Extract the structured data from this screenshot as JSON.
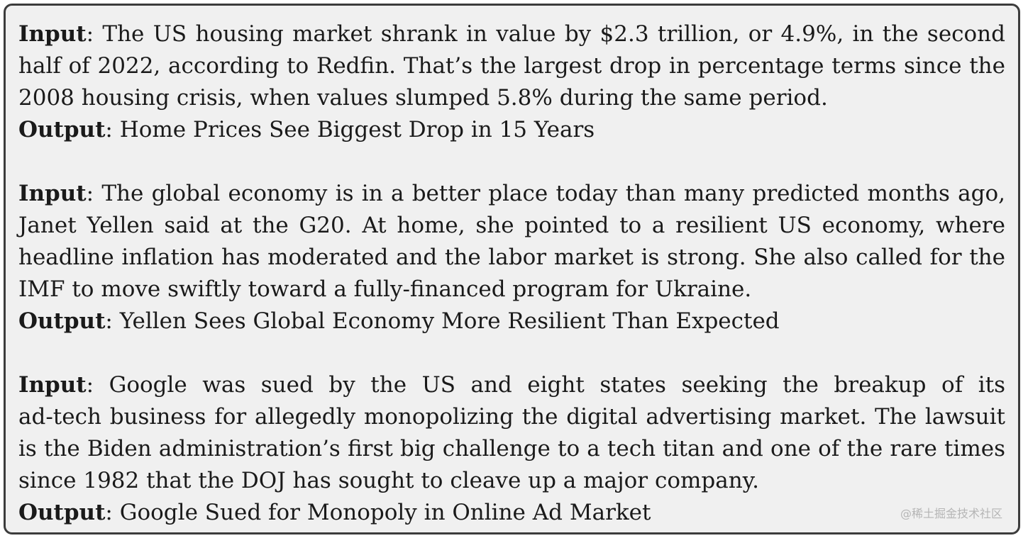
{
  "labels": {
    "input": "Input",
    "output": "Output",
    "separator": ":"
  },
  "examples": [
    {
      "input_lines": [
        "The US housing market shrank in value by $2.3 trillion, or 4.9%, in the second",
        "half of 2022, according to Redfin. That’s the largest drop in percentage terms since the",
        "2008 housing crisis, when values slumped 5.8% during the same period."
      ],
      "output": "Home Prices See Biggest Drop in 15 Years"
    },
    {
      "input_lines": [
        "The global economy is in a better place today than many predicted months ago,",
        "Janet Yellen said at the G20. At home, she pointed to a resilient US economy, where",
        "headline inflation has moderated and the labor market is strong. She also called for the",
        "IMF to move swiftly toward a fully-financed program for Ukraine."
      ],
      "output": "Yellen Sees Global Economy More Resilient Than Expected"
    },
    {
      "input_lines": [
        "Google was sued by the US and eight states seeking the breakup of its",
        "ad-tech business for allegedly monopolizing the digital advertising market. The lawsuit",
        "is the Biden administration’s first big challenge to a tech titan and one of the rare times",
        "since 1982 that the DOJ has sought to cleave up a major company."
      ],
      "output": "Google Sued for Monopoly in Online Ad Market"
    }
  ],
  "watermark": "@稀土掘金技术社区"
}
